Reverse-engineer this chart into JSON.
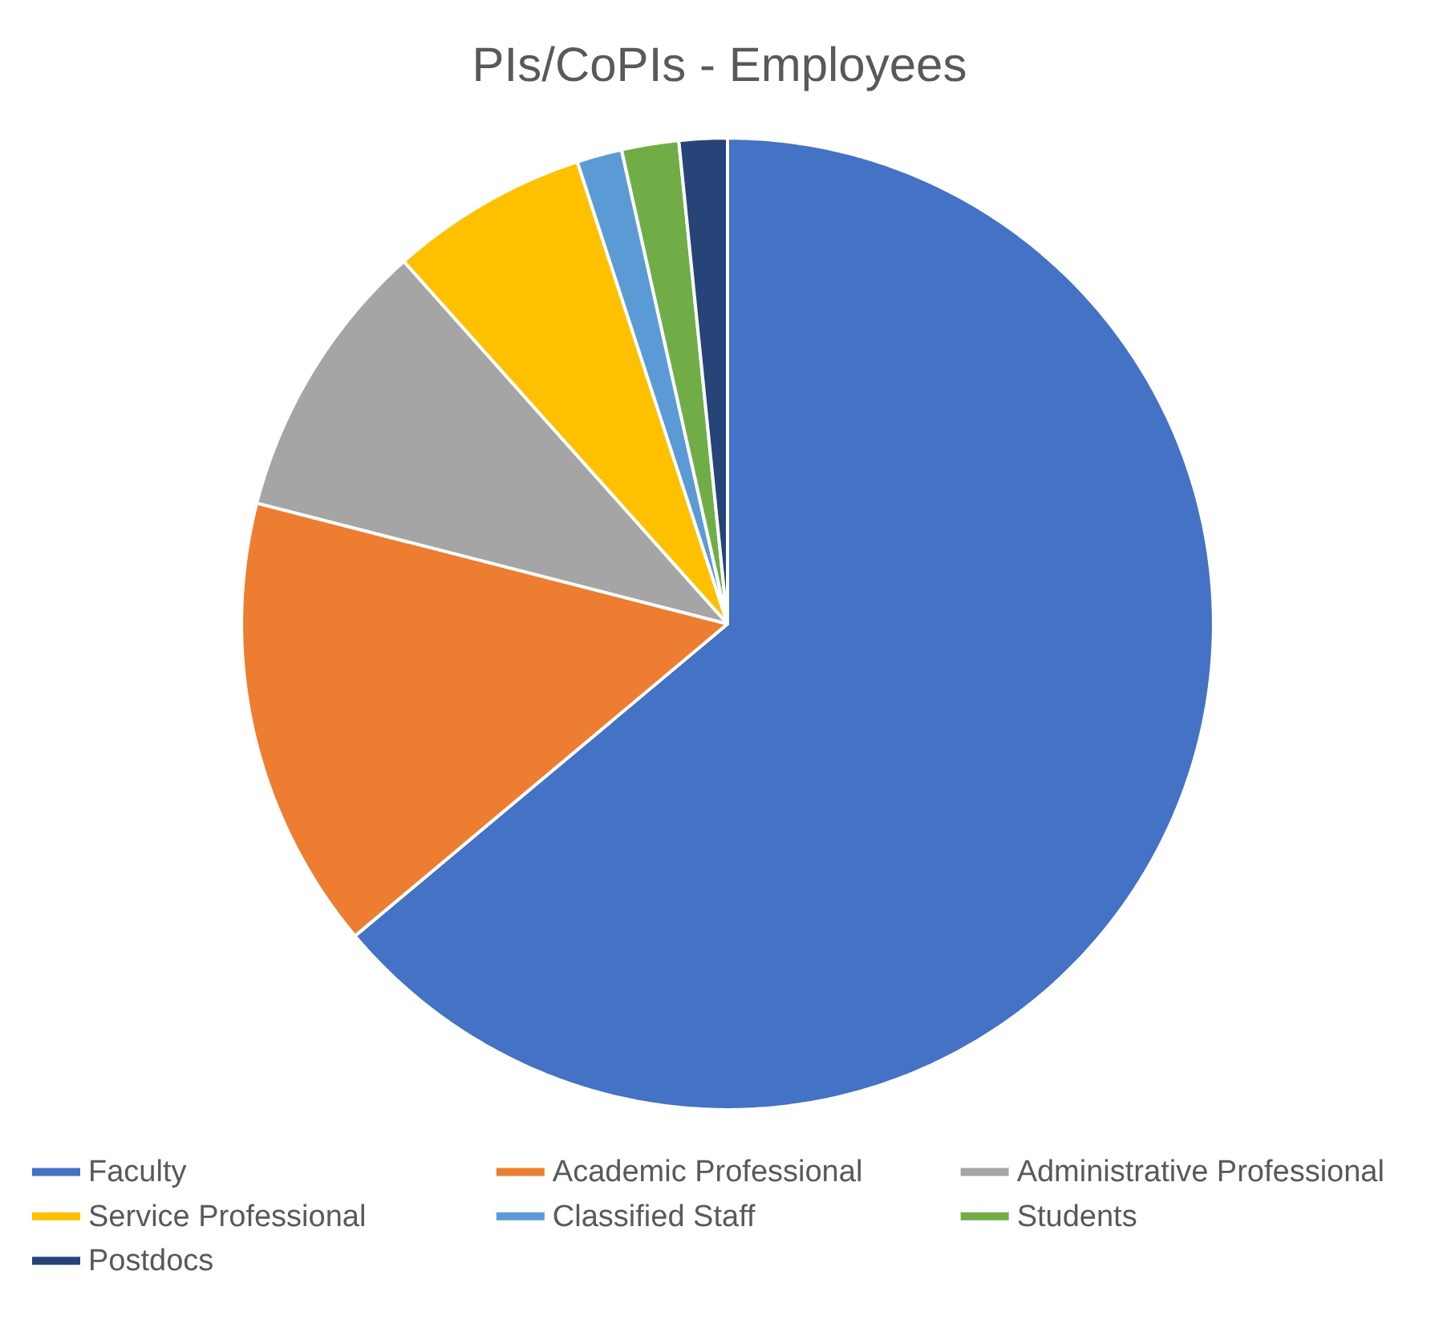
{
  "chart_data": {
    "type": "pie",
    "title": "PIs/CoPIs - Employees",
    "categories": [
      "Faculty",
      "Academic Professional",
      "Administrative Professional",
      "Service Professional",
      "Classified Staff",
      "Students",
      "Postdocs"
    ],
    "values": [
      63.9,
      15.1,
      9.4,
      6.6,
      1.5,
      1.9,
      1.6
    ],
    "colors": [
      "#4472c4",
      "#ed7d31",
      "#a5a5a5",
      "#ffc000",
      "#5b9bd5",
      "#70ad47",
      "#264478"
    ],
    "legend": "bottom"
  }
}
